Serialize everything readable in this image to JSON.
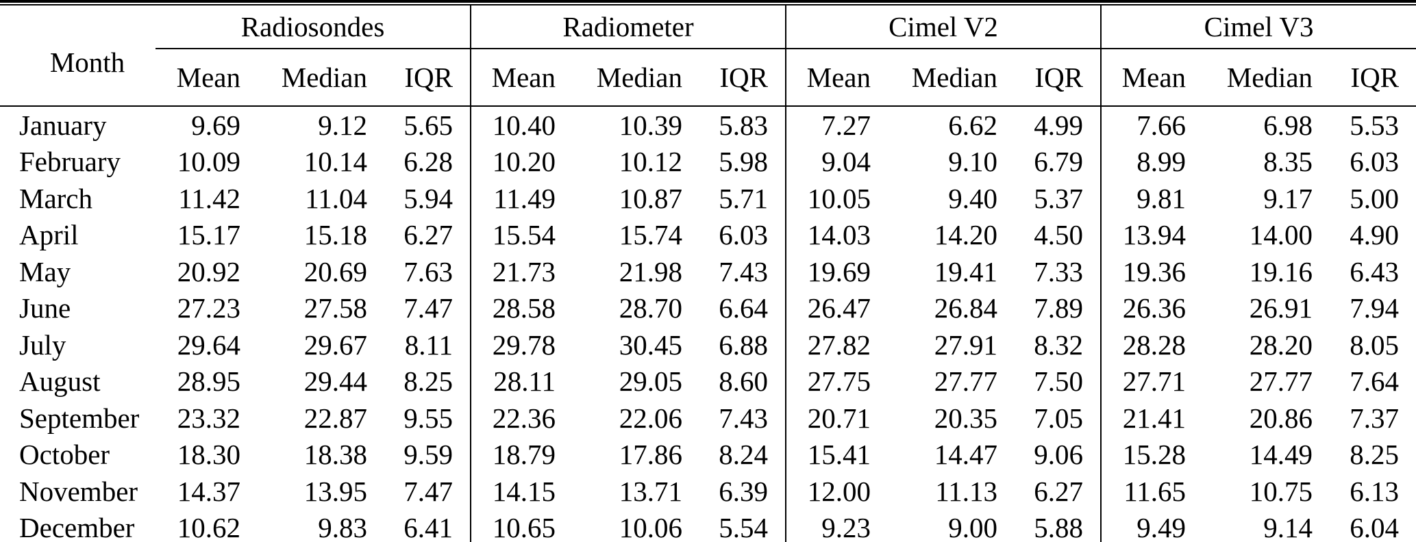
{
  "table": {
    "row_header_label": "Month",
    "groups": [
      {
        "label": "Radiosondes",
        "columns": [
          "Mean",
          "Median",
          "IQR"
        ]
      },
      {
        "label": "Radiometer",
        "columns": [
          "Mean",
          "Median",
          "IQR"
        ]
      },
      {
        "label": "Cimel V2",
        "columns": [
          "Mean",
          "Median",
          "IQR"
        ]
      },
      {
        "label": "Cimel V3",
        "columns": [
          "Mean",
          "Median",
          "IQR"
        ]
      }
    ],
    "rows": [
      {
        "month": "January",
        "values": [
          "9.69",
          "9.12",
          "5.65",
          "10.40",
          "10.39",
          "5.83",
          "7.27",
          "6.62",
          "4.99",
          "7.66",
          "6.98",
          "5.53"
        ]
      },
      {
        "month": "February",
        "values": [
          "10.09",
          "10.14",
          "6.28",
          "10.20",
          "10.12",
          "5.98",
          "9.04",
          "9.10",
          "6.79",
          "8.99",
          "8.35",
          "6.03"
        ]
      },
      {
        "month": "March",
        "values": [
          "11.42",
          "11.04",
          "5.94",
          "11.49",
          "10.87",
          "5.71",
          "10.05",
          "9.40",
          "5.37",
          "9.81",
          "9.17",
          "5.00"
        ]
      },
      {
        "month": "April",
        "values": [
          "15.17",
          "15.18",
          "6.27",
          "15.54",
          "15.74",
          "6.03",
          "14.03",
          "14.20",
          "4.50",
          "13.94",
          "14.00",
          "4.90"
        ]
      },
      {
        "month": "May",
        "values": [
          "20.92",
          "20.69",
          "7.63",
          "21.73",
          "21.98",
          "7.43",
          "19.69",
          "19.41",
          "7.33",
          "19.36",
          "19.16",
          "6.43"
        ]
      },
      {
        "month": "June",
        "values": [
          "27.23",
          "27.58",
          "7.47",
          "28.58",
          "28.70",
          "6.64",
          "26.47",
          "26.84",
          "7.89",
          "26.36",
          "26.91",
          "7.94"
        ]
      },
      {
        "month": "July",
        "values": [
          "29.64",
          "29.67",
          "8.11",
          "29.78",
          "30.45",
          "6.88",
          "27.82",
          "27.91",
          "8.32",
          "28.28",
          "28.20",
          "8.05"
        ]
      },
      {
        "month": "August",
        "values": [
          "28.95",
          "29.44",
          "8.25",
          "28.11",
          "29.05",
          "8.60",
          "27.75",
          "27.77",
          "7.50",
          "27.71",
          "27.77",
          "7.64"
        ]
      },
      {
        "month": "September",
        "values": [
          "23.32",
          "22.87",
          "9.55",
          "22.36",
          "22.06",
          "7.43",
          "20.71",
          "20.35",
          "7.05",
          "21.41",
          "20.86",
          "7.37"
        ]
      },
      {
        "month": "October",
        "values": [
          "18.30",
          "18.38",
          "9.59",
          "18.79",
          "17.86",
          "8.24",
          "15.41",
          "14.47",
          "9.06",
          "15.28",
          "14.49",
          "8.25"
        ]
      },
      {
        "month": "November",
        "values": [
          "14.37",
          "13.95",
          "7.47",
          "14.15",
          "13.71",
          "6.39",
          "12.00",
          "11.13",
          "6.27",
          "11.65",
          "10.75",
          "6.13"
        ]
      },
      {
        "month": "December",
        "values": [
          "10.62",
          "9.83",
          "6.41",
          "10.65",
          "10.06",
          "5.54",
          "9.23",
          "9.00",
          "5.88",
          "9.49",
          "9.14",
          "6.04"
        ]
      }
    ]
  },
  "colors": {
    "text": "#000000",
    "background": "#ffffff",
    "rule": "#000000"
  }
}
